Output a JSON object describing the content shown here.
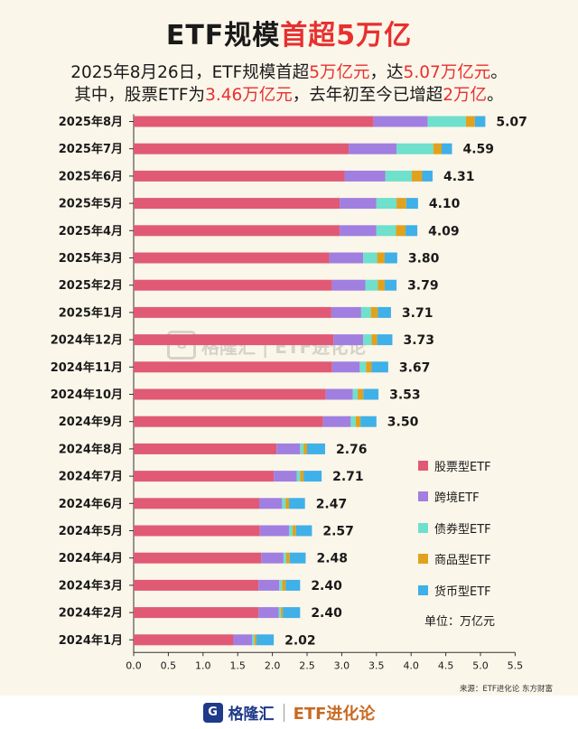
{
  "title": {
    "part1": "ETF规模",
    "part2": "首超5万亿"
  },
  "subtitle": {
    "line1": [
      {
        "text": "2025年8月26日，ETF规模首超",
        "hl": false
      },
      {
        "text": "5万亿元",
        "hl": true
      },
      {
        "text": "，达",
        "hl": false
      },
      {
        "text": "5.07万亿元",
        "hl": true
      },
      {
        "text": "。",
        "hl": false
      }
    ],
    "line2": [
      {
        "text": "其中，股票ETF为",
        "hl": false
      },
      {
        "text": "3.46万亿元",
        "hl": true
      },
      {
        "text": "，去年初至今已增超",
        "hl": false
      },
      {
        "text": "2万亿",
        "hl": true
      },
      {
        "text": "。",
        "hl": false
      }
    ]
  },
  "colors": {
    "stock": "#e05a75",
    "cross": "#a07fe0",
    "bond": "#6ee0cc",
    "commodity": "#e0a21e",
    "money": "#3fb0e8",
    "highlight": "#e8302f"
  },
  "legend": [
    {
      "label": "股票型ETF",
      "color": "#e05a75"
    },
    {
      "label": "跨境ETF",
      "color": "#a07fe0"
    },
    {
      "label": "债券型ETF",
      "color": "#6ee0cc"
    },
    {
      "label": "商品型ETF",
      "color": "#e0a21e"
    },
    {
      "label": "货币型ETF",
      "color": "#3fb0e8"
    }
  ],
  "unit": "单位：万亿元",
  "source": "来源：ETF进化论 东方财富",
  "watermark": {
    "icon": "G",
    "text": "格隆汇 | ETF进化论"
  },
  "footer": {
    "icon": "G",
    "brand": "格隆汇",
    "etf": "ETF进化论"
  },
  "chart_data": {
    "type": "bar",
    "orientation": "horizontal",
    "stacked": true,
    "categories": [
      "2025年8月",
      "2025年7月",
      "2025年6月",
      "2025年5月",
      "2025年4月",
      "2025年3月",
      "2025年2月",
      "2025年1月",
      "2024年12月",
      "2024年11月",
      "2024年10月",
      "2024年9月",
      "2024年8月",
      "2024年7月",
      "2024年6月",
      "2024年5月",
      "2024年4月",
      "2024年3月",
      "2024年2月",
      "2024年1月"
    ],
    "totals": [
      5.07,
      4.59,
      4.31,
      4.1,
      4.09,
      3.8,
      3.79,
      3.71,
      3.73,
      3.67,
      3.53,
      3.5,
      2.76,
      2.71,
      2.47,
      2.57,
      2.48,
      2.4,
      2.4,
      2.02
    ],
    "series": [
      {
        "name": "股票型ETF",
        "values": [
          3.46,
          3.1,
          3.04,
          2.97,
          2.97,
          2.82,
          2.86,
          2.85,
          2.88,
          2.86,
          2.77,
          2.73,
          2.06,
          2.02,
          1.81,
          1.82,
          1.84,
          1.8,
          1.8,
          1.44
        ]
      },
      {
        "name": "跨境ETF",
        "values": [
          0.78,
          0.69,
          0.59,
          0.53,
          0.53,
          0.49,
          0.48,
          0.43,
          0.43,
          0.4,
          0.39,
          0.4,
          0.34,
          0.33,
          0.33,
          0.42,
          0.32,
          0.3,
          0.29,
          0.27
        ]
      },
      {
        "name": "债券型ETF",
        "values": [
          0.55,
          0.53,
          0.38,
          0.29,
          0.28,
          0.2,
          0.18,
          0.14,
          0.12,
          0.09,
          0.07,
          0.07,
          0.05,
          0.05,
          0.05,
          0.05,
          0.04,
          0.04,
          0.03,
          0.03
        ]
      },
      {
        "name": "商品型ETF",
        "values": [
          0.13,
          0.12,
          0.15,
          0.14,
          0.14,
          0.11,
          0.1,
          0.1,
          0.08,
          0.08,
          0.08,
          0.07,
          0.05,
          0.05,
          0.05,
          0.05,
          0.05,
          0.05,
          0.03,
          0.03
        ]
      },
      {
        "name": "货币型ETF",
        "values": [
          0.15,
          0.15,
          0.15,
          0.17,
          0.17,
          0.18,
          0.17,
          0.19,
          0.22,
          0.24,
          0.22,
          0.23,
          0.26,
          0.26,
          0.23,
          0.23,
          0.23,
          0.21,
          0.25,
          0.25
        ]
      }
    ],
    "xlim": [
      0,
      5.5
    ],
    "xticks": [
      "0.0",
      "0.5",
      "1.0",
      "1.5",
      "2.0",
      "2.5",
      "3.0",
      "3.5",
      "4.0",
      "4.5",
      "5.0",
      "5.5"
    ],
    "grid": false,
    "legend_position": "bottom-right"
  }
}
